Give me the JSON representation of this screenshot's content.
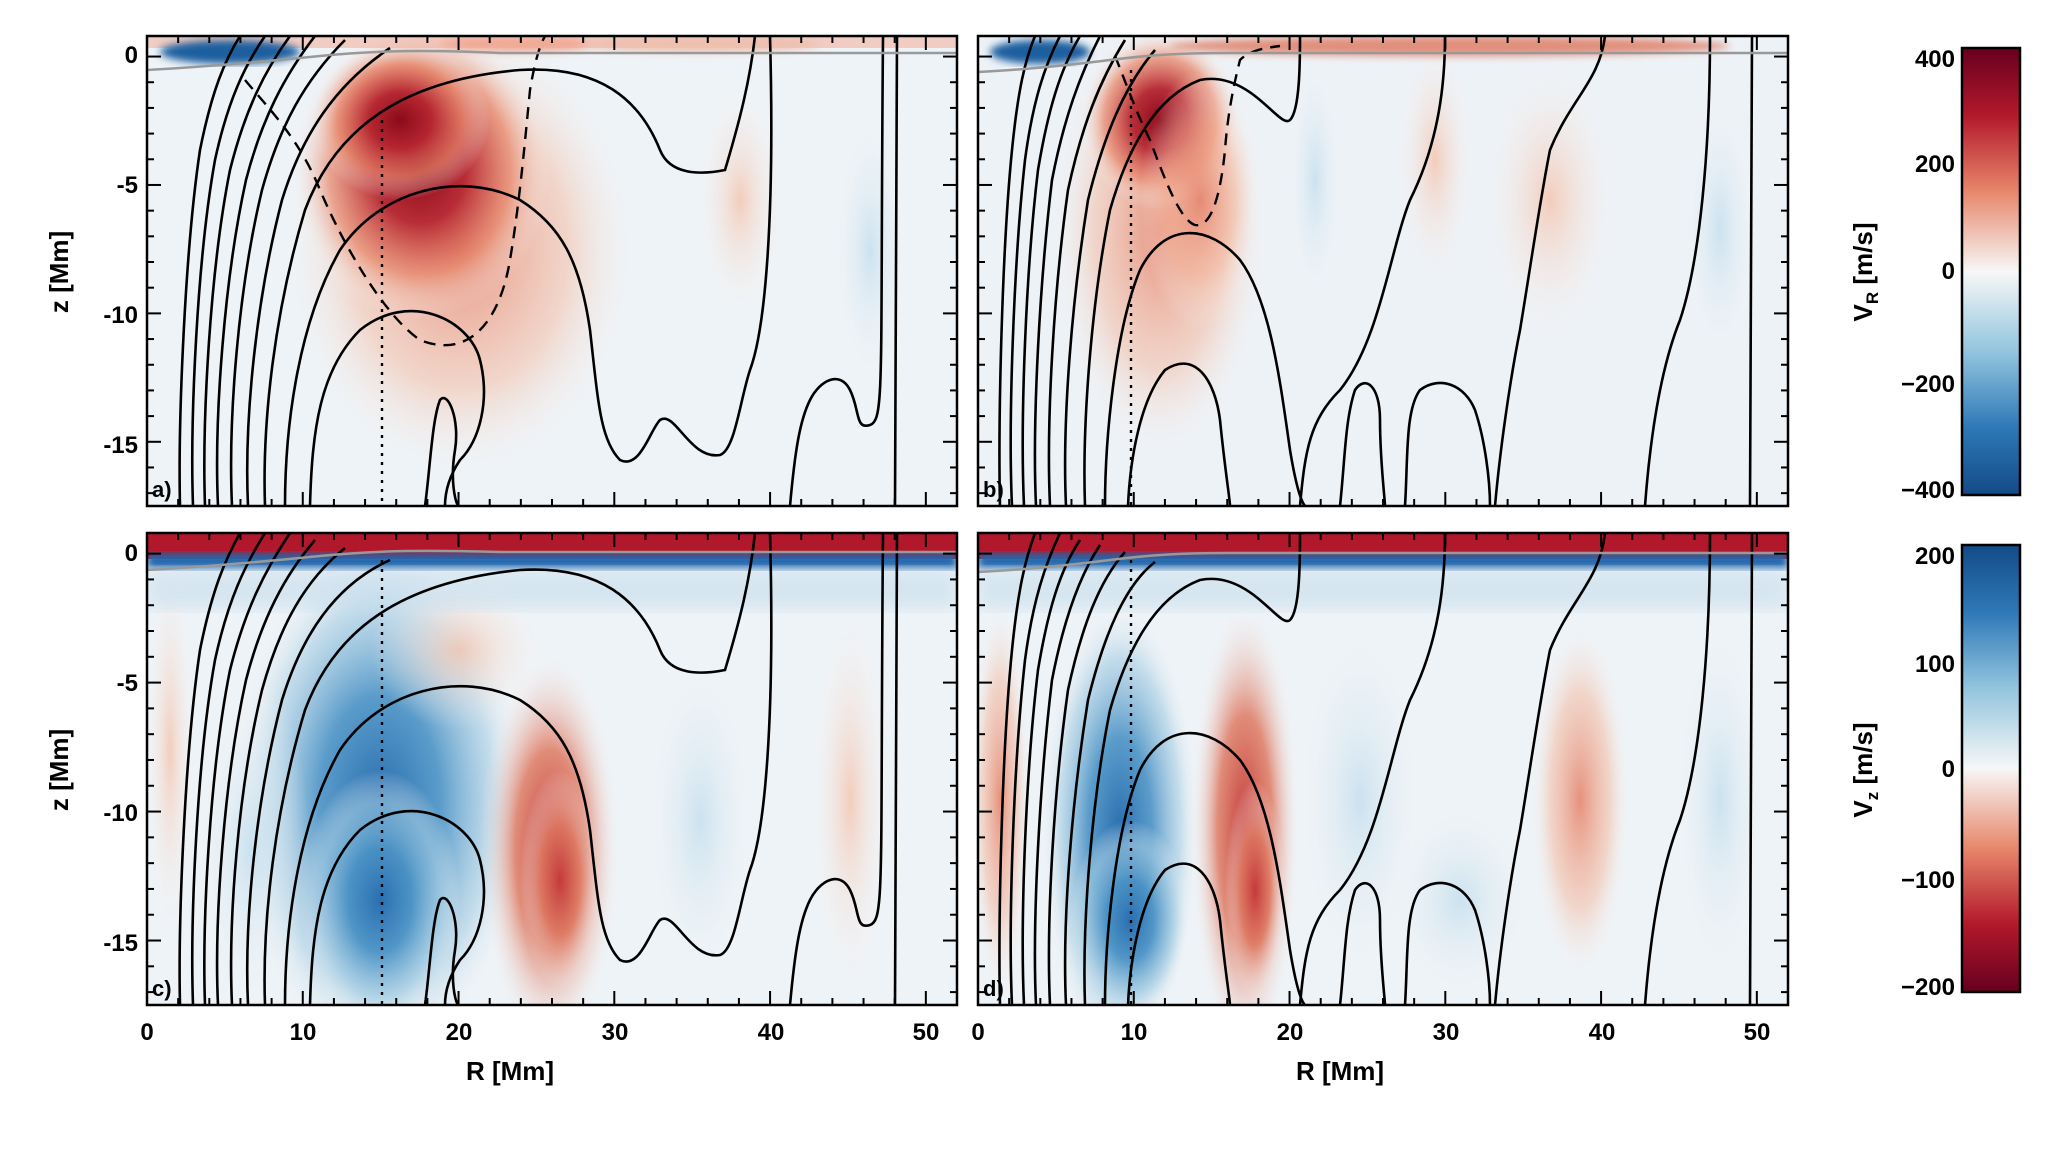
{
  "chart_data": [
    {
      "type": "heatmap",
      "panel": "a)",
      "quantity": "V_R",
      "xlabel": "",
      "ylabel": "z [Mm]",
      "xlim": [
        0,
        52
      ],
      "ylim": [
        -17.5,
        0.8
      ],
      "x_ticks": [
        "0",
        "10",
        "20",
        "30",
        "40",
        "50"
      ],
      "y_ticks": [
        "0",
        "-5",
        "-10",
        "-15"
      ],
      "dotted_line_R": 15,
      "features": [
        {
          "name": "outflow core",
          "R": 17,
          "z": -3.5,
          "value": 400
        },
        {
          "name": "surface inflow",
          "R": 4,
          "z": 0.3,
          "value": -400
        }
      ]
    },
    {
      "type": "heatmap",
      "panel": "b)",
      "quantity": "V_R",
      "xlabel": "",
      "ylabel": "",
      "xlim": [
        0,
        52
      ],
      "ylim": [
        -17.5,
        0.8
      ],
      "x_ticks": [
        "0",
        "10",
        "20",
        "30",
        "40",
        "50"
      ],
      "y_ticks": [
        "0",
        "-5",
        "-10",
        "-15"
      ],
      "dotted_line_R": 9.5,
      "features": [
        {
          "name": "outflow core",
          "R": 12,
          "z": -2.5,
          "value": 400
        },
        {
          "name": "surface inflow",
          "R": 3,
          "z": 0.3,
          "value": -400
        }
      ]
    },
    {
      "type": "heatmap",
      "panel": "c)",
      "quantity": "V_z",
      "xlabel": "R [Mm]",
      "ylabel": "z [Mm]",
      "xlim": [
        0,
        52
      ],
      "ylim": [
        -17.5,
        0.8
      ],
      "x_ticks": [
        "0",
        "10",
        "20",
        "30",
        "40",
        "50"
      ],
      "y_ticks": [
        "0",
        "-5",
        "-10",
        "-15"
      ],
      "dotted_line_R": 15,
      "features": [
        {
          "name": "upflow band",
          "R": 15,
          "z": -10,
          "value": 200
        },
        {
          "name": "downflow band",
          "R": 25,
          "z": -12,
          "value": -200
        }
      ]
    },
    {
      "type": "heatmap",
      "panel": "d)",
      "quantity": "V_z",
      "xlabel": "R [Mm]",
      "ylabel": "",
      "xlim": [
        0,
        52
      ],
      "ylim": [
        -17.5,
        0.8
      ],
      "x_ticks": [
        "0",
        "10",
        "20",
        "30",
        "40",
        "50"
      ],
      "y_ticks": [
        "0",
        "-5",
        "-10",
        "-15"
      ],
      "dotted_line_R": 9.5,
      "features": [
        {
          "name": "upflow band",
          "R": 10,
          "z": -10,
          "value": 200
        },
        {
          "name": "downflow band",
          "R": 19,
          "z": -12,
          "value": -200
        }
      ]
    }
  ],
  "colorbars": [
    {
      "label_main": "V",
      "label_sub": "R",
      "label_unit": " [m/s]",
      "range": [
        -400,
        400
      ],
      "ticks": [
        "400",
        "200",
        "0",
        "−200",
        "−400"
      ],
      "top_color": "#a50f15",
      "bottom_color": "#2166ac"
    },
    {
      "label_main": "V",
      "label_sub": "z",
      "label_unit": " [m/s]",
      "range": [
        -200,
        200
      ],
      "ticks": [
        "200",
        "100",
        "0",
        "−100",
        "−200"
      ],
      "top_color": "#2166ac",
      "bottom_color": "#a50f15"
    }
  ],
  "labels": {
    "ylabel_top": "z [Mm]",
    "ylabel_bottom": "z [Mm]",
    "xlabel_left": "R [Mm]",
    "xlabel_right": "R [Mm]",
    "ytick_0": "0",
    "ytick_m5": "-5",
    "ytick_m10": "-10",
    "ytick_m15": "-15",
    "xtick_0": "0",
    "xtick_10": "10",
    "xtick_20": "20",
    "xtick_30": "30",
    "xtick_40": "40",
    "xtick_50": "50",
    "panel_a": "a)",
    "panel_b": "b)",
    "panel_c": "c)",
    "panel_d": "d)"
  },
  "colors": {
    "red_dark": "#a50f15",
    "red": "#d6604d",
    "white": "#f7f7f7",
    "blue": "#4393c3",
    "blue_dark": "#2166ac"
  }
}
